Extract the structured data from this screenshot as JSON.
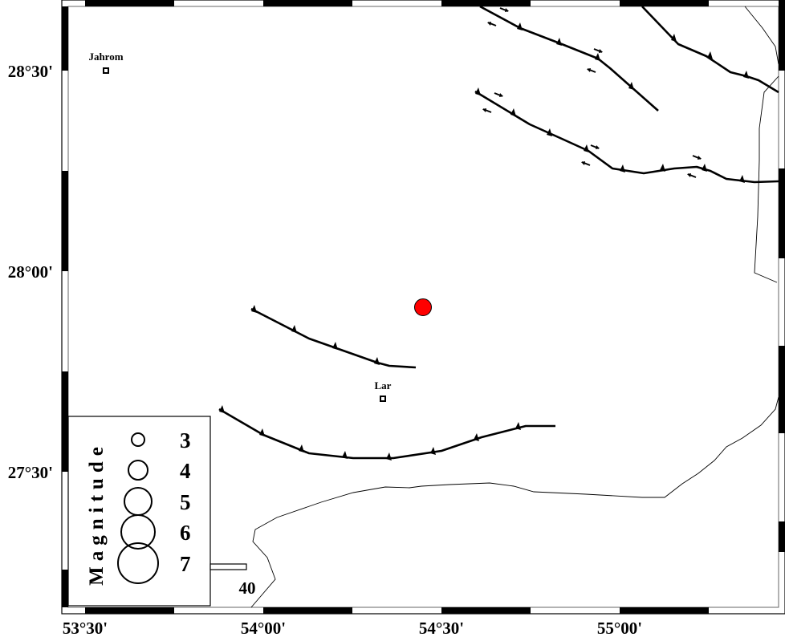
{
  "map": {
    "lon_labels": [
      "53°30'",
      "54°00'",
      "54°30'",
      "55°00'"
    ],
    "lat_labels": [
      "28°30'",
      "28°00'",
      "27°30'"
    ],
    "cities": [
      {
        "name": "Jahrom"
      },
      {
        "name": "Lar"
      }
    ],
    "event": {
      "color": "#ff0000"
    },
    "scale_bar": {
      "label": "40"
    }
  },
  "legend": {
    "title": "Magnitude",
    "magnitudes": [
      "3",
      "4",
      "5",
      "6",
      "7"
    ]
  },
  "colors": {
    "fault": "#000000",
    "coastline": "#000000",
    "event": "#ff0000"
  }
}
